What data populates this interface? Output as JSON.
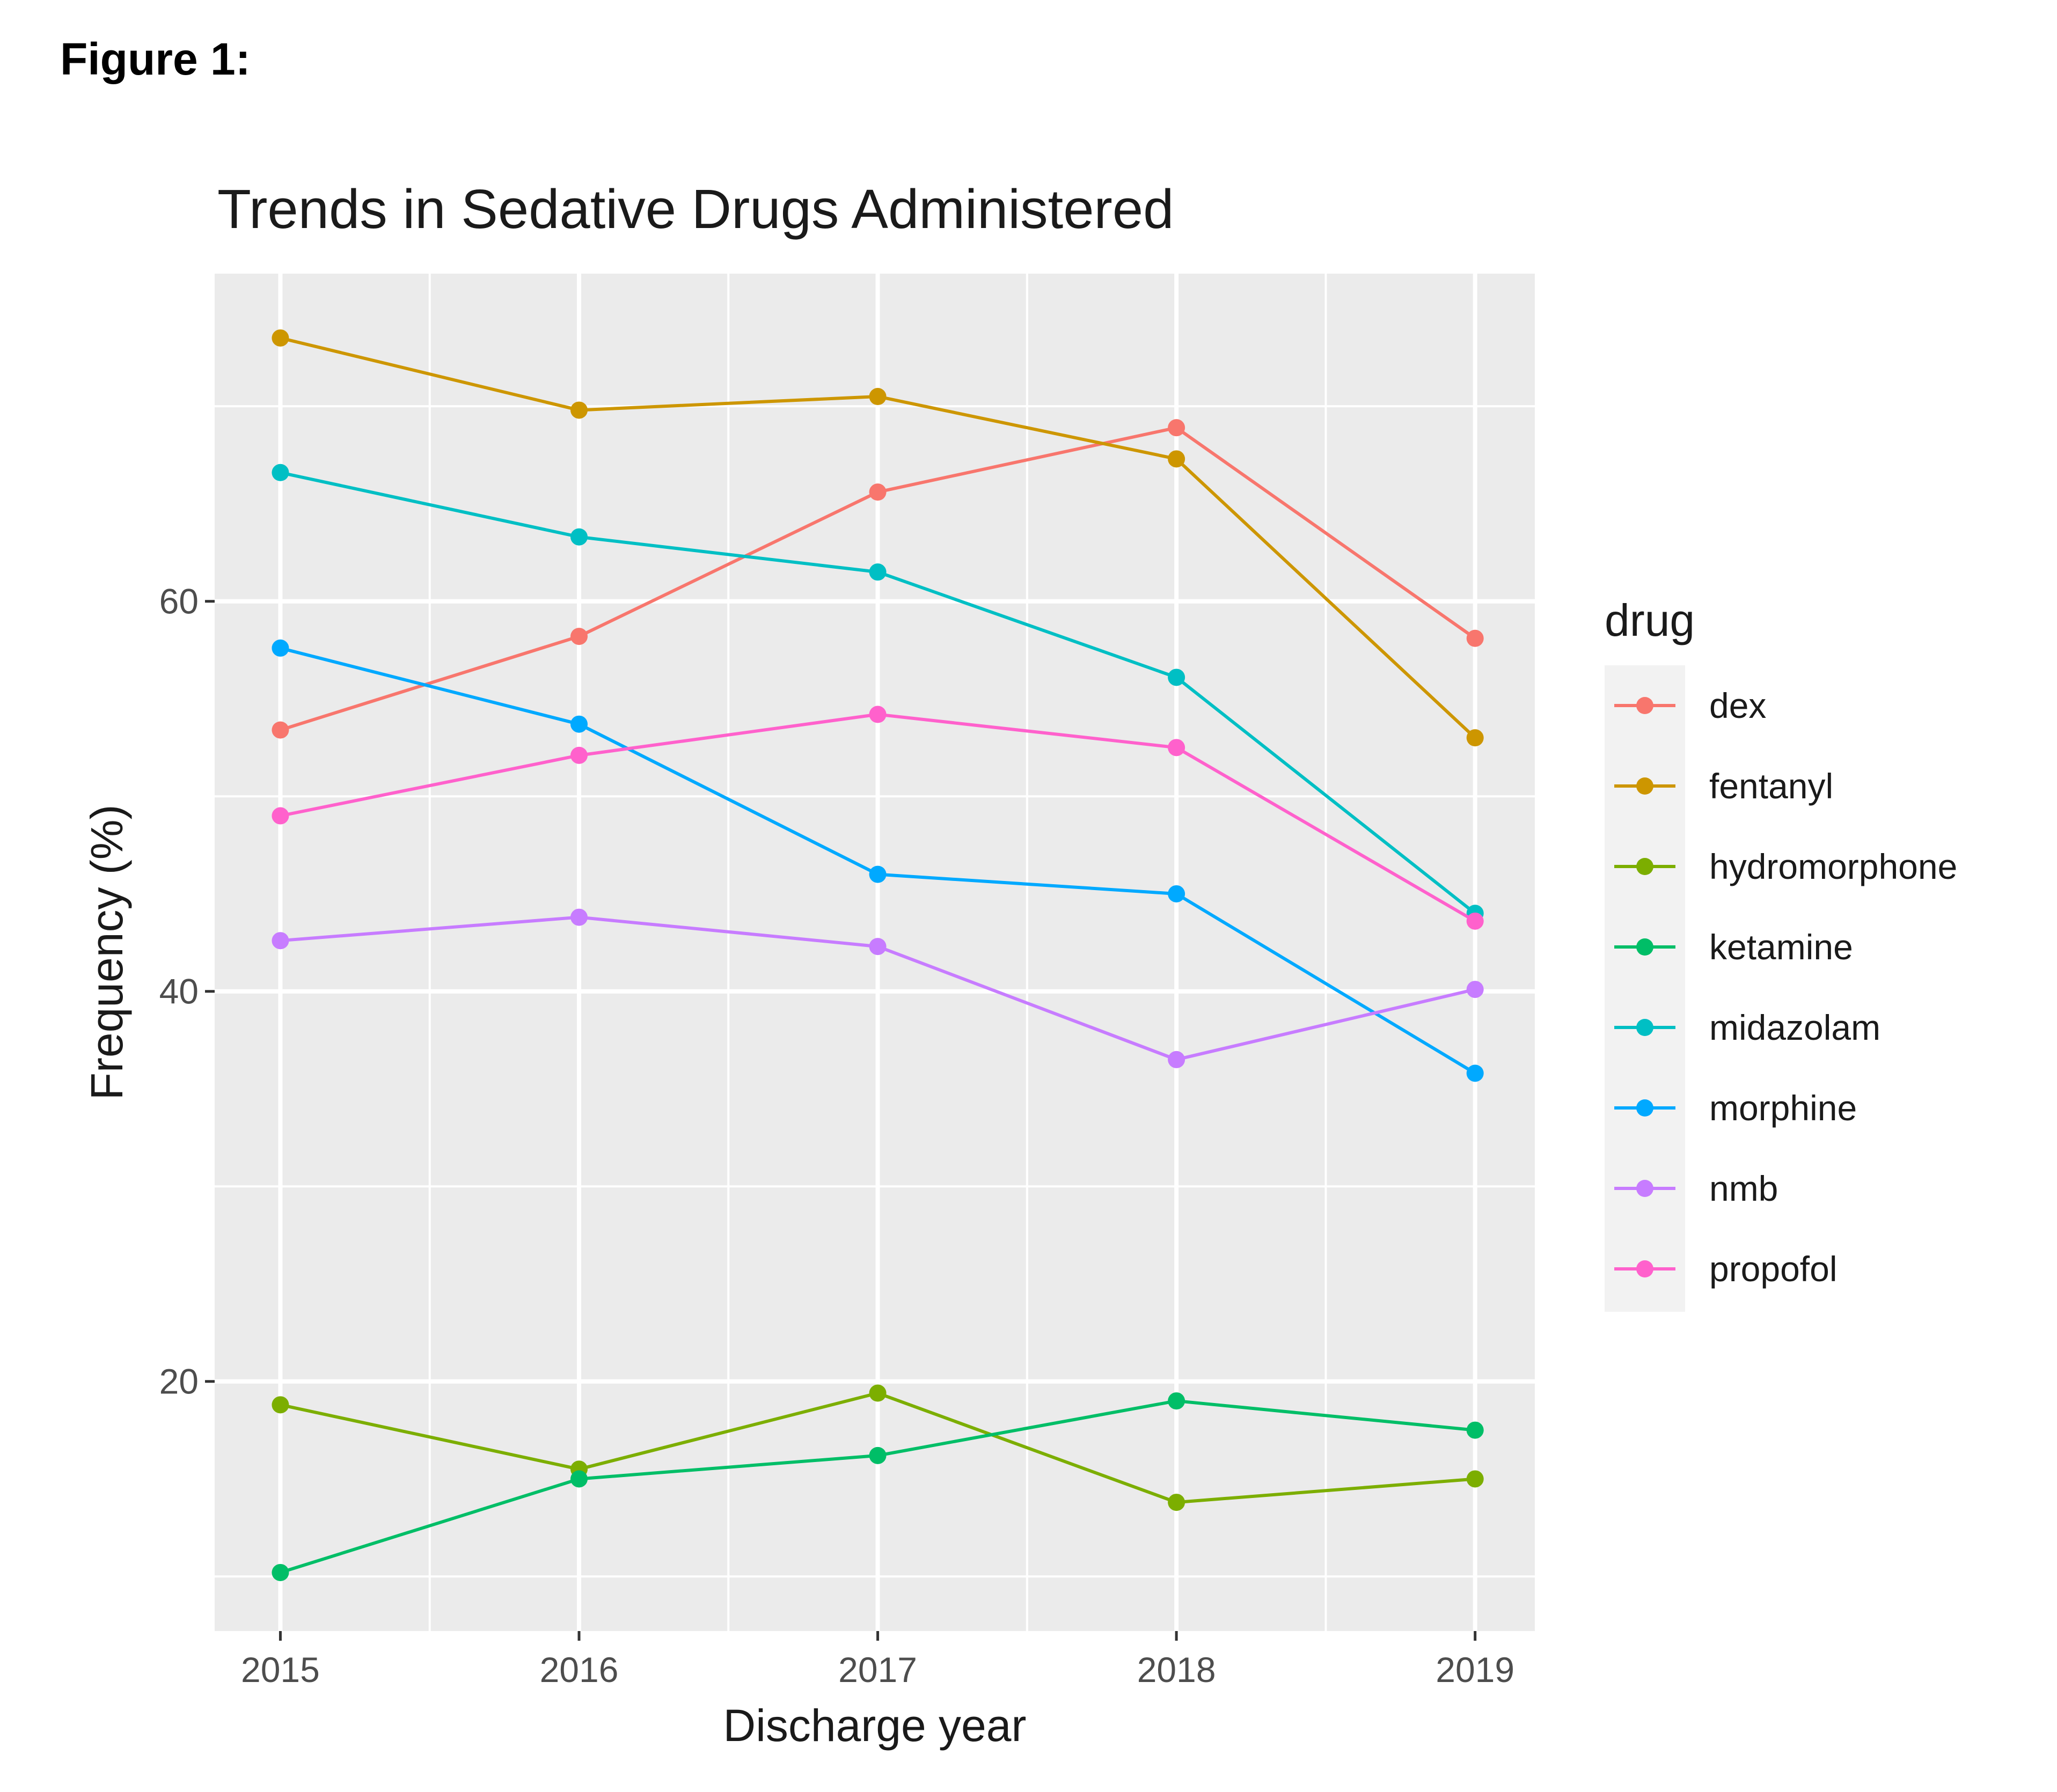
{
  "figure_label": "Figure 1:",
  "chart_data": {
    "type": "line",
    "title": "Trends in Sedative Drugs Administered",
    "xlabel": "Discharge year",
    "ylabel": "Frequency (%)",
    "x": [
      2015,
      2016,
      2017,
      2018,
      2019
    ],
    "xlim": [
      2014.78,
      2019.2
    ],
    "ylim": [
      7.2,
      76.8
    ],
    "yticks": [
      20,
      40,
      60
    ],
    "grid": true,
    "legend_title": "drug",
    "legend_position": "right",
    "series": [
      {
        "name": "dex",
        "color": "#F8766D",
        "values": [
          53.4,
          58.2,
          65.6,
          68.9,
          58.1
        ]
      },
      {
        "name": "fentanyl",
        "color": "#CD9600",
        "values": [
          73.5,
          69.8,
          70.5,
          67.3,
          53.0
        ]
      },
      {
        "name": "hydromorphone",
        "color": "#7CAE00",
        "values": [
          18.8,
          15.5,
          19.4,
          13.8,
          15.0
        ]
      },
      {
        "name": "ketamine",
        "color": "#00BE67",
        "values": [
          10.2,
          15.0,
          16.2,
          19.0,
          17.5
        ]
      },
      {
        "name": "midazolam",
        "color": "#00BFC4",
        "values": [
          66.6,
          63.3,
          61.5,
          56.1,
          44.0
        ]
      },
      {
        "name": "morphine",
        "color": "#00A9FF",
        "values": [
          57.6,
          53.7,
          46.0,
          45.0,
          35.8
        ]
      },
      {
        "name": "nmb",
        "color": "#C77CFF",
        "values": [
          42.6,
          43.8,
          42.3,
          36.5,
          40.1
        ]
      },
      {
        "name": "propofol",
        "color": "#FF61CC",
        "values": [
          49.0,
          52.1,
          54.2,
          52.5,
          43.6
        ]
      }
    ]
  }
}
